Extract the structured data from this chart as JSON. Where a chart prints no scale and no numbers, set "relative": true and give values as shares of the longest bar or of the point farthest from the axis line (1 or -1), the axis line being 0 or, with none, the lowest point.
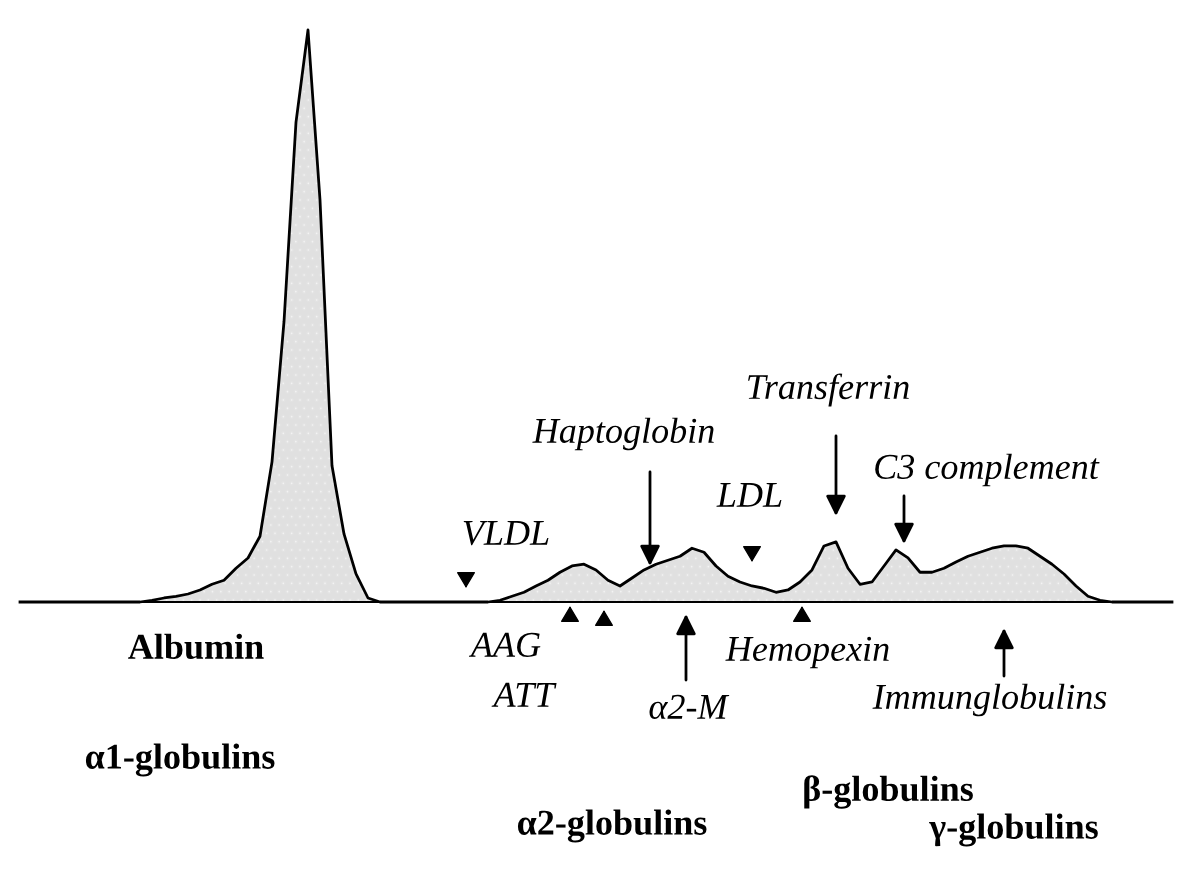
{
  "chart_data": {
    "type": "area",
    "relative": true,
    "color": "#000000",
    "categories": [
      null,
      null,
      null,
      null,
      null,
      null,
      null,
      null,
      null,
      null,
      null,
      null,
      null,
      null,
      null,
      null,
      null,
      null,
      null,
      null,
      null,
      null,
      null,
      null,
      null,
      null,
      null,
      null,
      null,
      null,
      null,
      null,
      null,
      null,
      null,
      null,
      null,
      null,
      null,
      null,
      null,
      null,
      null,
      null,
      null,
      null,
      null,
      null,
      null,
      null,
      null,
      null,
      null,
      null,
      null,
      null,
      null,
      null,
      null,
      null,
      null,
      null,
      null,
      null,
      null,
      null,
      null,
      null,
      null,
      null,
      null,
      null,
      null,
      null,
      null,
      null,
      null,
      null,
      null,
      null,
      null,
      null,
      null,
      null,
      null,
      null,
      null,
      null,
      null,
      null,
      null,
      null,
      null,
      null,
      null,
      null,
      null
    ],
    "values": [
      0,
      0,
      0,
      0,
      0,
      0,
      0,
      0,
      0,
      0,
      0,
      0.003,
      0.007,
      0.01,
      0.014,
      0.021,
      0.031,
      0.038,
      0.059,
      0.077,
      0.115,
      0.245,
      0.49,
      0.839,
      1,
      0.703,
      0.238,
      0.119,
      0.049,
      0.007,
      0,
      0,
      0,
      0,
      0,
      0,
      0,
      0,
      0,
      0,
      0.003,
      0.01,
      0.017,
      0.028,
      0.038,
      0.052,
      0.063,
      0.066,
      0.056,
      0.038,
      0.028,
      0.042,
      0.056,
      0.066,
      0.073,
      0.08,
      0.094,
      0.087,
      0.063,
      0.045,
      0.035,
      0.028,
      0.024,
      0.017,
      0.021,
      0.035,
      0.056,
      0.098,
      0.105,
      0.059,
      0.031,
      0.035,
      0.063,
      0.091,
      0.077,
      0.052,
      0.052,
      0.059,
      0.07,
      0.08,
      0.087,
      0.094,
      0.098,
      0.098,
      0.094,
      0.08,
      0.066,
      0.049,
      0.028,
      0.01,
      0.003,
      0,
      0,
      0,
      0,
      0,
      0
    ],
    "annotations": [
      "Albumin",
      "VLDL",
      "Haptoglobin",
      "LDL",
      "Transferrin",
      "C3 complement",
      "AAG",
      "ATT",
      "α2-M",
      "Hemopexin",
      "Immunglobulins",
      "α1-globulins",
      "β-globulins",
      "α2-globulins",
      "γ-globulins"
    ]
  }
}
